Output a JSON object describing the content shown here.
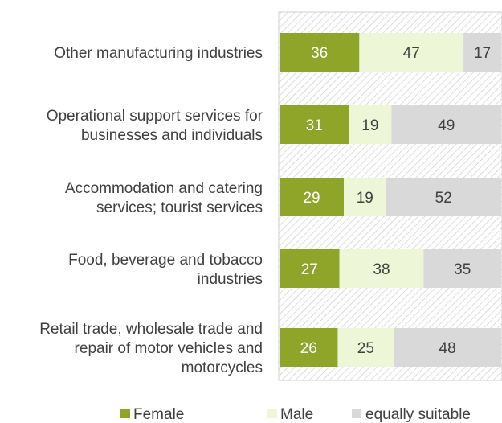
{
  "chart_data": {
    "type": "bar",
    "orientation": "horizontal",
    "stacked": true,
    "title": "",
    "xlabel": "",
    "ylabel": "",
    "xlim": [
      0,
      100
    ],
    "grid": false,
    "legend_position": "bottom",
    "categories": [
      [
        "Other manufacturing industries"
      ],
      [
        "Operational support services for",
        "businesses and individuals"
      ],
      [
        "Accommodation and catering",
        "services; tourist services"
      ],
      [
        "Food, beverage and tobacco",
        "industries"
      ],
      [
        "Retail trade, wholesale trade and",
        "repair of motor vehicles and",
        "motorcycles"
      ]
    ],
    "series": [
      {
        "name": "Female",
        "color": "#8ea529",
        "label_color": "#ffffff",
        "values": [
          36,
          31,
          29,
          27,
          26
        ]
      },
      {
        "name": "Male",
        "color": "#eef6d8",
        "label_color": "#404040",
        "values": [
          47,
          19,
          19,
          38,
          25
        ]
      },
      {
        "name": "equally suitable",
        "color": "#d9d9d9",
        "label_color": "#404040",
        "values": [
          17,
          49,
          52,
          35,
          48
        ]
      }
    ]
  }
}
